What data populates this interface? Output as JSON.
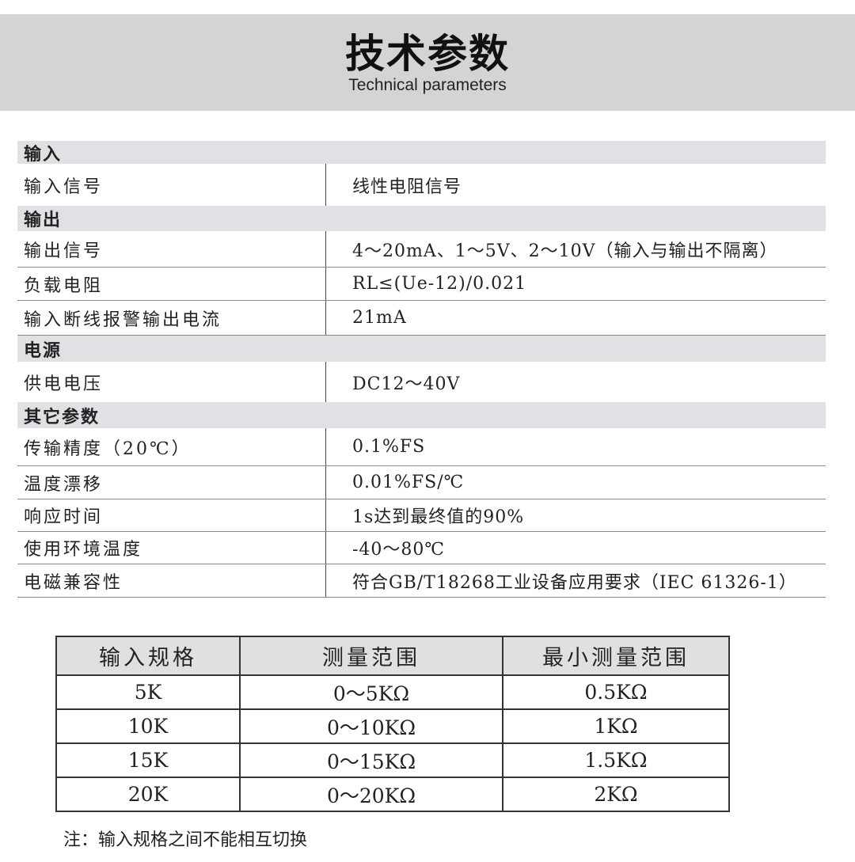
{
  "header": {
    "title": "技术参数",
    "subtitle": "Technical parameters"
  },
  "spec": [
    {
      "type": "section",
      "key": "输入",
      "value": ""
    },
    {
      "type": "row",
      "key": "输入信号",
      "value": "线性电阻信号",
      "h": 53
    },
    {
      "type": "section",
      "key": "输出",
      "value": ""
    },
    {
      "type": "row",
      "key": "输出信号",
      "value": "4～20mA、1～5V、2～10V（输入与输出不隔离）",
      "h": 46
    },
    {
      "type": "row",
      "key": "负载电阻",
      "value": "RL≤(Ue-12)/0.021",
      "h": 42
    },
    {
      "type": "row",
      "key": "输入断线报警输出电流",
      "value": "21mA",
      "h": 44
    },
    {
      "type": "section",
      "key": "电源",
      "value": ""
    },
    {
      "type": "row",
      "key": "供电电压",
      "value": "DC12～40V",
      "h": 51
    },
    {
      "type": "section",
      "key": "其它参数",
      "value": ""
    },
    {
      "type": "row",
      "key": "传输精度（20℃）",
      "value": "0.1%FS",
      "h": 48
    },
    {
      "type": "row",
      "key": "温度漂移",
      "value": "0.01%FS/℃",
      "h": 42
    },
    {
      "type": "row",
      "key": "响应时间",
      "value": "1s达到最终值的90%",
      "h": 41
    },
    {
      "type": "row",
      "key": "使用环境温度",
      "value": "-40～80℃",
      "h": 41
    },
    {
      "type": "row",
      "key": "电磁兼容性",
      "value": "符合GB/T18268工业设备应用要求（IEC 61326-1）",
      "h": 42
    }
  ],
  "range_table": {
    "headers": [
      "输入规格",
      "测量范围",
      "最小测量范围"
    ],
    "rows": [
      [
        "5K",
        "0～5KΩ",
        "0.5KΩ"
      ],
      [
        "10K",
        "0～10KΩ",
        "1KΩ"
      ],
      [
        "15K",
        "0～15KΩ",
        "1.5KΩ"
      ],
      [
        "20K",
        "0～20KΩ",
        "2KΩ"
      ]
    ]
  },
  "note": "注：输入规格之间不能相互切换"
}
